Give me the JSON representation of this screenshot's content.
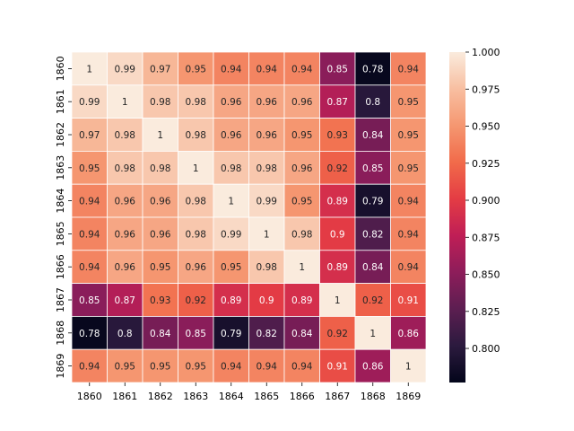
{
  "chart_data": {
    "type": "heatmap",
    "title": "",
    "xlabel": "",
    "ylabel": "",
    "x_labels": [
      "1860",
      "1861",
      "1862",
      "1863",
      "1864",
      "1865",
      "1866",
      "1867",
      "1868",
      "1869"
    ],
    "y_labels": [
      "1860",
      "1861",
      "1862",
      "1863",
      "1864",
      "1865",
      "1866",
      "1867",
      "1868",
      "1869"
    ],
    "values": [
      [
        1,
        0.99,
        0.97,
        0.95,
        0.94,
        0.94,
        0.94,
        0.85,
        0.78,
        0.94
      ],
      [
        0.99,
        1,
        0.98,
        0.98,
        0.96,
        0.96,
        0.96,
        0.87,
        0.8,
        0.95
      ],
      [
        0.97,
        0.98,
        1,
        0.98,
        0.96,
        0.96,
        0.95,
        0.93,
        0.84,
        0.95
      ],
      [
        0.95,
        0.98,
        0.98,
        1,
        0.98,
        0.98,
        0.96,
        0.92,
        0.85,
        0.95
      ],
      [
        0.94,
        0.96,
        0.96,
        0.98,
        1,
        0.99,
        0.95,
        0.89,
        0.79,
        0.94
      ],
      [
        0.94,
        0.96,
        0.96,
        0.98,
        0.99,
        1,
        0.98,
        0.9,
        0.82,
        0.94
      ],
      [
        0.94,
        0.96,
        0.95,
        0.96,
        0.95,
        0.98,
        1,
        0.89,
        0.84,
        0.94
      ],
      [
        0.85,
        0.87,
        0.93,
        0.92,
        0.89,
        0.9,
        0.89,
        1,
        0.92,
        0.91
      ],
      [
        0.78,
        0.8,
        0.84,
        0.85,
        0.79,
        0.82,
        0.84,
        0.92,
        1,
        0.86
      ],
      [
        0.94,
        0.95,
        0.95,
        0.95,
        0.94,
        0.94,
        0.94,
        0.91,
        0.86,
        1
      ]
    ],
    "colorbar": {
      "vmin": 0.777,
      "vmax": 1.0,
      "ticks": [
        0.8,
        0.825,
        0.85,
        0.875,
        0.9,
        0.925,
        0.95,
        0.975,
        1.0
      ],
      "tick_labels": [
        "0.800",
        "0.825",
        "0.850",
        "0.875",
        "0.900",
        "0.925",
        "0.950",
        "0.975",
        "1.000"
      ],
      "colormap": "rocket"
    },
    "cell_edge_color": "#ffffff",
    "colormap_stops": [
      "#03051a",
      "#2b1a3e",
      "#5c1e51",
      "#8d1d5a",
      "#bf1e56",
      "#e43c44",
      "#f16b4a",
      "#f59771",
      "#f8bfa1",
      "#faebdd"
    ]
  }
}
